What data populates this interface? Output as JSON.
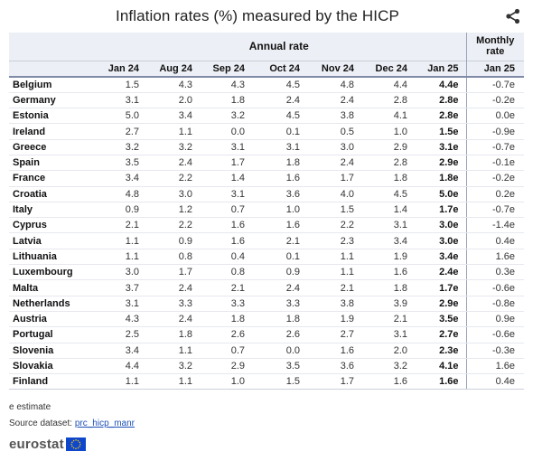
{
  "title": "Inflation rates (%) measured by the HICP",
  "header": {
    "annual_label": "Annual rate",
    "monthly_label_line1": "Monthly",
    "monthly_label_line2": "rate",
    "columns": [
      "Jan 24",
      "Aug 24",
      "Sep 24",
      "Oct 24",
      "Nov 24",
      "Dec 24",
      "Jan 25",
      "Jan 25"
    ]
  },
  "rows": [
    {
      "country": "Belgium",
      "values": [
        "1.5",
        "4.3",
        "4.3",
        "4.5",
        "4.8",
        "4.4",
        "4.4e",
        "-0.7e"
      ]
    },
    {
      "country": "Germany",
      "values": [
        "3.1",
        "2.0",
        "1.8",
        "2.4",
        "2.4",
        "2.8",
        "2.8e",
        "-0.2e"
      ]
    },
    {
      "country": "Estonia",
      "values": [
        "5.0",
        "3.4",
        "3.2",
        "4.5",
        "3.8",
        "4.1",
        "2.8e",
        "0.0e"
      ]
    },
    {
      "country": "Ireland",
      "values": [
        "2.7",
        "1.1",
        "0.0",
        "0.1",
        "0.5",
        "1.0",
        "1.5e",
        "-0.9e"
      ]
    },
    {
      "country": "Greece",
      "values": [
        "3.2",
        "3.2",
        "3.1",
        "3.1",
        "3.0",
        "2.9",
        "3.1e",
        "-0.7e"
      ]
    },
    {
      "country": "Spain",
      "values": [
        "3.5",
        "2.4",
        "1.7",
        "1.8",
        "2.4",
        "2.8",
        "2.9e",
        "-0.1e"
      ]
    },
    {
      "country": "France",
      "values": [
        "3.4",
        "2.2",
        "1.4",
        "1.6",
        "1.7",
        "1.8",
        "1.8e",
        "-0.2e"
      ]
    },
    {
      "country": "Croatia",
      "values": [
        "4.8",
        "3.0",
        "3.1",
        "3.6",
        "4.0",
        "4.5",
        "5.0e",
        "0.2e"
      ]
    },
    {
      "country": "Italy",
      "values": [
        "0.9",
        "1.2",
        "0.7",
        "1.0",
        "1.5",
        "1.4",
        "1.7e",
        "-0.7e"
      ]
    },
    {
      "country": "Cyprus",
      "values": [
        "2.1",
        "2.2",
        "1.6",
        "1.6",
        "2.2",
        "3.1",
        "3.0e",
        "-1.4e"
      ]
    },
    {
      "country": "Latvia",
      "values": [
        "1.1",
        "0.9",
        "1.6",
        "2.1",
        "2.3",
        "3.4",
        "3.0e",
        "0.4e"
      ]
    },
    {
      "country": "Lithuania",
      "values": [
        "1.1",
        "0.8",
        "0.4",
        "0.1",
        "1.1",
        "1.9",
        "3.4e",
        "1.6e"
      ]
    },
    {
      "country": "Luxembourg",
      "values": [
        "3.0",
        "1.7",
        "0.8",
        "0.9",
        "1.1",
        "1.6",
        "2.4e",
        "0.3e"
      ]
    },
    {
      "country": "Malta",
      "values": [
        "3.7",
        "2.4",
        "2.1",
        "2.4",
        "2.1",
        "1.8",
        "1.7e",
        "-0.6e"
      ]
    },
    {
      "country": "Netherlands",
      "values": [
        "3.1",
        "3.3",
        "3.3",
        "3.3",
        "3.8",
        "3.9",
        "2.9e",
        "-0.8e"
      ]
    },
    {
      "country": "Austria",
      "values": [
        "4.3",
        "2.4",
        "1.8",
        "1.8",
        "1.9",
        "2.1",
        "3.5e",
        "0.9e"
      ]
    },
    {
      "country": "Portugal",
      "values": [
        "2.5",
        "1.8",
        "2.6",
        "2.6",
        "2.7",
        "3.1",
        "2.7e",
        "-0.6e"
      ]
    },
    {
      "country": "Slovenia",
      "values": [
        "3.4",
        "1.1",
        "0.7",
        "0.0",
        "1.6",
        "2.0",
        "2.3e",
        "-0.3e"
      ]
    },
    {
      "country": "Slovakia",
      "values": [
        "4.4",
        "3.2",
        "2.9",
        "3.5",
        "3.6",
        "3.2",
        "4.1e",
        "1.6e"
      ]
    },
    {
      "country": "Finland",
      "values": [
        "1.1",
        "1.1",
        "1.0",
        "1.5",
        "1.7",
        "1.6",
        "1.6e",
        "0.4e"
      ]
    }
  ],
  "footnote": "e estimate",
  "source_prefix": "Source dataset:",
  "source_link": "prc_hicp_manr",
  "logo_text": "eurostat",
  "icons": {
    "share": "share-icon",
    "flag": "eu-flag-icon"
  },
  "colors": {
    "header_bg": "#eceff5",
    "link": "#1d4fb8",
    "flag_blue": "#0e47cb",
    "flag_star": "#ffcc00"
  }
}
